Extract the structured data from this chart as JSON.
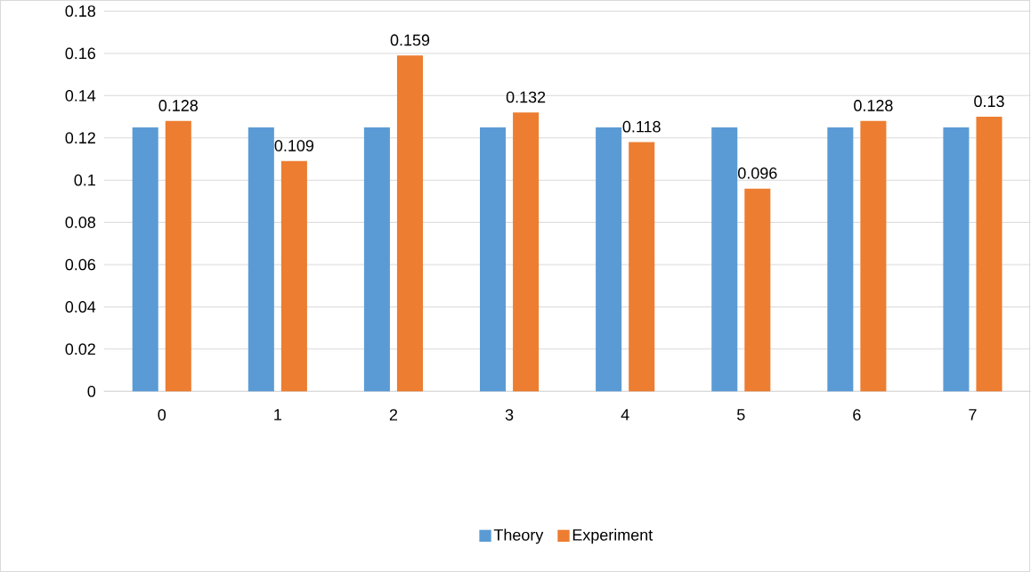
{
  "chart_data": {
    "type": "bar",
    "categories": [
      "0",
      "1",
      "2",
      "3",
      "4",
      "5",
      "6",
      "7"
    ],
    "series": [
      {
        "name": "Theory",
        "color": "#5b9bd5",
        "values": [
          0.125,
          0.125,
          0.125,
          0.125,
          0.125,
          0.125,
          0.125,
          0.125
        ]
      },
      {
        "name": "Experiment",
        "color": "#ed7d31",
        "values": [
          0.128,
          0.109,
          0.159,
          0.132,
          0.118,
          0.096,
          0.128,
          0.13
        ],
        "value_labels": [
          "0.128",
          "0.109",
          "0.159",
          "0.132",
          "0.118",
          "0.096",
          "0.128",
          "0.13"
        ]
      }
    ],
    "ylim": [
      0,
      0.18
    ],
    "yticks": [
      0,
      0.02,
      0.04,
      0.06,
      0.08,
      0.1,
      0.12,
      0.14,
      0.16,
      0.18
    ],
    "grid": "y",
    "legend": "bottom"
  }
}
